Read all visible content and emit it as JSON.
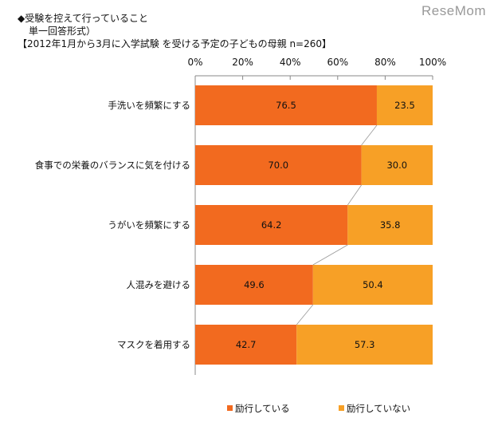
{
  "logo": "ReseMom",
  "chart_data": {
    "type": "bar",
    "stacked": true,
    "orientation": "horizontal",
    "title": "◆受験を控えて行っていること",
    "subtitle": "単一回答形式）",
    "note": "【2012年1月から3月に入学試験 を受ける予定の子どもの母親 n=260】",
    "categories": [
      "手洗いを頻繁にする",
      "食事での栄養のバランスに気を付ける",
      "うがいを頻繁にする",
      "人混みを避ける",
      "マスクを着用する"
    ],
    "series": [
      {
        "name": "励行している",
        "color": "#F26A1F",
        "values": [
          76.5,
          70.0,
          64.2,
          49.6,
          42.7
        ]
      },
      {
        "name": "励行していない",
        "color": "#F7A026",
        "values": [
          23.5,
          30.0,
          35.8,
          50.4,
          57.3
        ]
      }
    ],
    "xticks": [
      "0%",
      "20%",
      "40%",
      "60%",
      "80%",
      "100%"
    ],
    "xlim": [
      0,
      100
    ],
    "legend": "bottom"
  }
}
